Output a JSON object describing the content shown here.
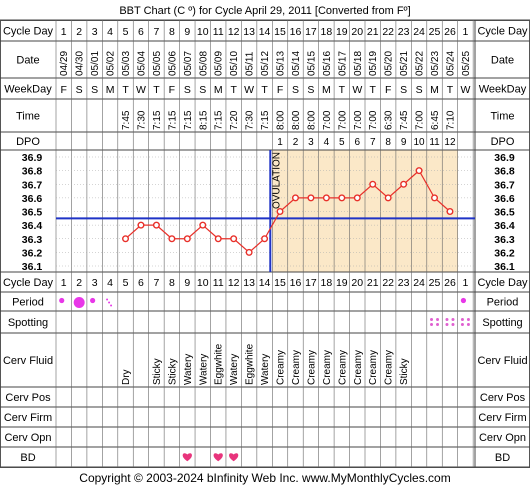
{
  "title": "BBT Chart (C º) for Cycle April 29, 2011  [Converted from Fº]",
  "copyright": "Copyright © 2003-2024 bInfinity Web Inc.    www.MyMonthlyCycles.com",
  "labels": {
    "cycle_day": "Cycle Day",
    "date": "Date",
    "weekday": "WeekDay",
    "time": "Time",
    "dpo": "DPO",
    "period": "Period",
    "spotting": "Spotting",
    "cerv_fluid": "Cerv Fluid",
    "cerv_pos": "Cerv Pos",
    "cerv_firm": "Cerv Firm",
    "cerv_opn": "Cerv Opn",
    "bd": "BD"
  },
  "ovulation_label": "OVULATION",
  "colors": {
    "post_ovulation_fill": "#fbe8c8",
    "line_red": "#e8302a",
    "cover_line_blue": "#1f33c6",
    "period_magenta": "#e837e8",
    "spotting_pink": "#e060d0",
    "heart_pink": "#e8347c",
    "grid_gray": "#aaaaaa",
    "label_bg": "#ffffff"
  },
  "chart_data": {
    "type": "line",
    "ylim": [
      36.1,
      36.9
    ],
    "yticks": [
      "36.9",
      "36.8",
      "36.7",
      "36.6",
      "36.5",
      "36.4",
      "36.3",
      "36.2",
      "36.1"
    ],
    "cover_line": 36.45,
    "ovulation_day": 14,
    "cycle_days": [
      1,
      2,
      3,
      4,
      5,
      6,
      7,
      8,
      9,
      10,
      11,
      12,
      13,
      14,
      15,
      16,
      17,
      18,
      19,
      20,
      21,
      22,
      23,
      24,
      25,
      26,
      1
    ],
    "dates": [
      "04/29",
      "04/30",
      "05/01",
      "05/02",
      "05/03",
      "05/04",
      "05/05",
      "05/06",
      "05/07",
      "05/08",
      "05/09",
      "05/10",
      "05/11",
      "05/12",
      "05/13",
      "05/14",
      "05/15",
      "05/16",
      "05/17",
      "05/18",
      "05/19",
      "05/20",
      "05/21",
      "05/22",
      "05/23",
      "05/24",
      "05/25"
    ],
    "weekdays": [
      "F",
      "S",
      "S",
      "M",
      "T",
      "W",
      "T",
      "F",
      "S",
      "S",
      "M",
      "T",
      "W",
      "T",
      "F",
      "S",
      "S",
      "M",
      "T",
      "W",
      "T",
      "F",
      "S",
      "S",
      "M",
      "T",
      "W"
    ],
    "times": [
      "",
      "",
      "",
      "",
      "7:45",
      "7:30",
      "7:15",
      "7:15",
      "7:15",
      "8:15",
      "7:15",
      "7:20",
      "7:30",
      "7:15",
      "8:00",
      "8:00",
      "8:00",
      "7:00",
      "7:00",
      "7:00",
      "7:00",
      "6:30",
      "7:45",
      "7:00",
      "6:45",
      "7:10",
      ""
    ],
    "dpo": [
      "",
      "",
      "",
      "",
      "",
      "",
      "",
      "",
      "",
      "",
      "",
      "",
      "",
      "",
      "1",
      "2",
      "3",
      "4",
      "5",
      "6",
      "7",
      "8",
      "9",
      "10",
      "11",
      "12",
      ""
    ],
    "temps": [
      null,
      null,
      null,
      null,
      36.3,
      36.4,
      36.4,
      36.3,
      36.3,
      36.4,
      36.3,
      36.3,
      36.2,
      36.3,
      36.5,
      36.6,
      36.6,
      36.6,
      36.6,
      36.6,
      36.7,
      36.6,
      36.7,
      36.8,
      36.6,
      36.5,
      null
    ],
    "period": [
      "small",
      "large",
      "small",
      "tiny",
      "",
      "",
      "",
      "",
      "",
      "",
      "",
      "",
      "",
      "",
      "",
      "",
      "",
      "",
      "",
      "",
      "",
      "",
      "",
      "",
      "",
      "",
      "small"
    ],
    "spotting": [
      "",
      "",
      "",
      "",
      "",
      "",
      "",
      "",
      "",
      "",
      "",
      "",
      "",
      "",
      "",
      "",
      "",
      "",
      "",
      "",
      "",
      "",
      "",
      "",
      "spot",
      "spot",
      "spot"
    ],
    "cerv_fluid": [
      "",
      "",
      "",
      "",
      "Dry",
      "",
      "Sticky",
      "Sticky",
      "Watery",
      "Watery",
      "Eggwhite",
      "Watery",
      "Eggwhite",
      "Watery",
      "Creamy",
      "Creamy",
      "Creamy",
      "Creamy",
      "Creamy",
      "Creamy",
      "Creamy",
      "Creamy",
      "Sticky",
      "",
      "",
      "",
      ""
    ],
    "bd": [
      "",
      "",
      "",
      "",
      "",
      "",
      "",
      "",
      "heart",
      "",
      "heart",
      "heart",
      "",
      "",
      "",
      "",
      "",
      "",
      "",
      "",
      "",
      "",
      "",
      "",
      "",
      "",
      ""
    ]
  }
}
